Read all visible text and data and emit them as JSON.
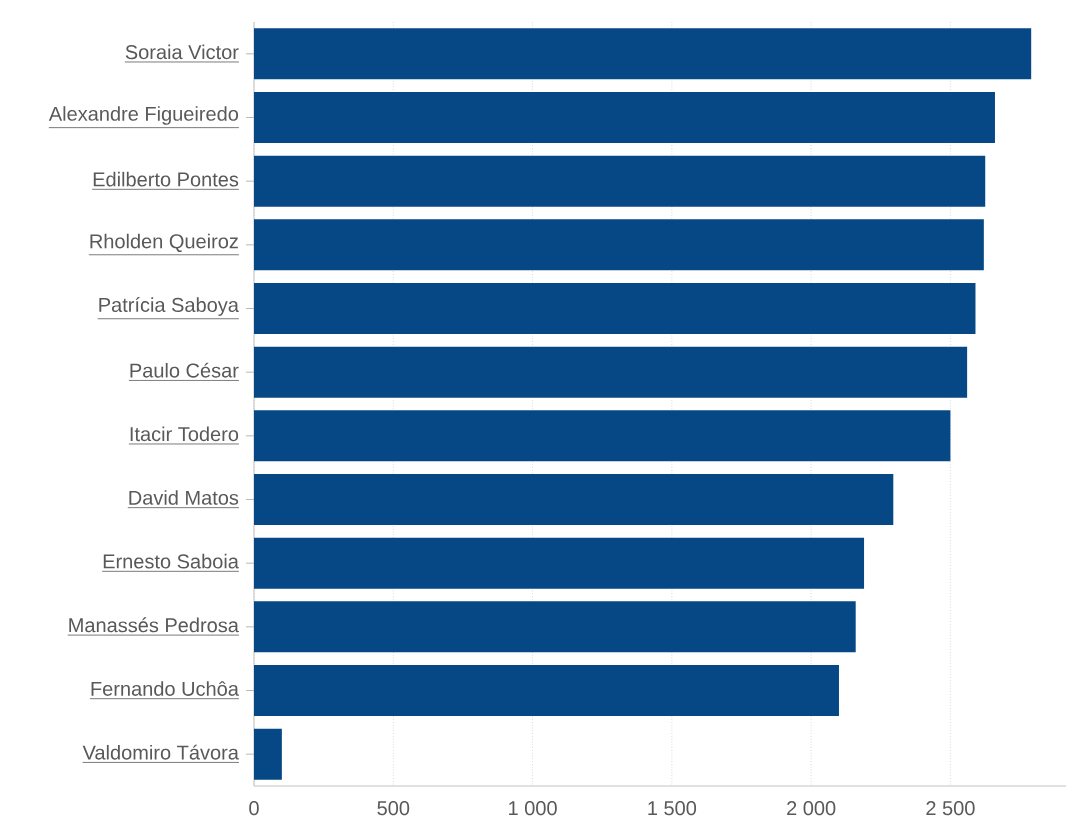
{
  "chart_data": {
    "type": "bar",
    "orientation": "horizontal",
    "categories": [
      "Soraia Victor",
      "Alexandre Figueiredo",
      "Edilberto Pontes",
      "Rholden Queiroz",
      "Patrícia Saboya",
      "Paulo César",
      "Itacir Todero",
      "David Matos",
      "Ernesto Saboia",
      "Manassés Pedrosa",
      "Fernando Uchôa",
      "Valdomiro Távora"
    ],
    "values": [
      2790,
      2660,
      2625,
      2620,
      2590,
      2560,
      2500,
      2295,
      2190,
      2160,
      2100,
      100
    ],
    "color": "#064785",
    "xlim": [
      0,
      2915
    ],
    "xticks": [
      0,
      500,
      {
        "value": 1000,
        "label": "1 000"
      },
      {
        "value": 1500,
        "label": "1 500"
      },
      {
        "value": 2000,
        "label": "2 000"
      },
      {
        "value": 2500,
        "label": "2 500"
      }
    ],
    "grid": "x"
  }
}
